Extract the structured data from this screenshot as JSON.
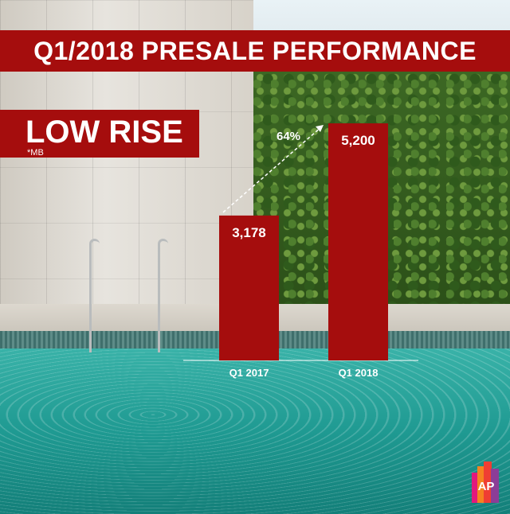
{
  "title": "Q1/2018 PRESALE PERFORMANCE",
  "subtitle": "LOW RISE",
  "unit": "*MB",
  "logo_text": "AP",
  "colors": {
    "accent": "#a50d0d",
    "text": "#ffffff"
  },
  "chart_data": {
    "type": "bar",
    "categories": [
      "Q1 2017",
      "Q1 2018"
    ],
    "values": [
      3178,
      5200
    ],
    "value_labels": [
      "3,178",
      "5,200"
    ],
    "annotation": "64%",
    "title": "Q1/2018 PRESALE PERFORMANCE",
    "xlabel": "",
    "ylabel": "",
    "grid": false,
    "legend": "none"
  }
}
